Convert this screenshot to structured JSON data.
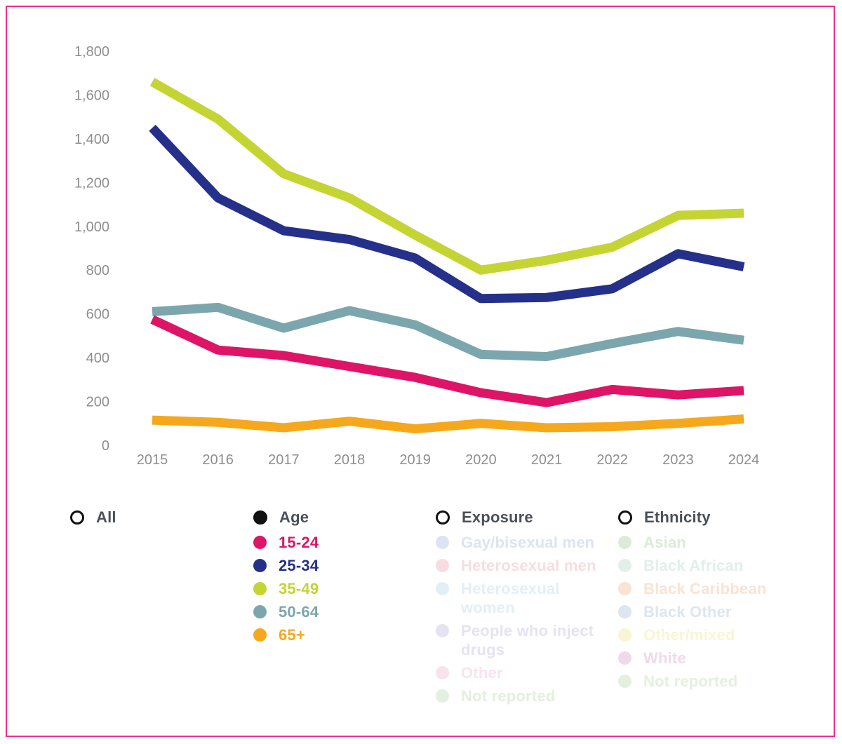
{
  "page": {
    "border_color": "#ef2d96",
    "axis_label_color": "#8e8e8e",
    "background": "#ffffff"
  },
  "chart_data": {
    "type": "line",
    "title": "",
    "xlabel": "",
    "ylabel": "",
    "x": [
      2015,
      2016,
      2017,
      2018,
      2019,
      2020,
      2021,
      2022,
      2023,
      2024
    ],
    "series": [
      {
        "name": "15-24",
        "color": "#de1567",
        "values": [
          575,
          435,
          410,
          360,
          310,
          240,
          195,
          255,
          230,
          250
        ]
      },
      {
        "name": "25-34",
        "color": "#25308a",
        "values": [
          1450,
          1130,
          980,
          940,
          855,
          670,
          675,
          715,
          875,
          815
        ]
      },
      {
        "name": "35-49",
        "color": "#c4d433",
        "values": [
          1660,
          1490,
          1240,
          1130,
          960,
          800,
          845,
          905,
          1050,
          1060
        ]
      },
      {
        "name": "50-64",
        "color": "#7ca6ad",
        "values": [
          610,
          630,
          535,
          615,
          550,
          415,
          405,
          465,
          520,
          480
        ]
      },
      {
        "name": "65+",
        "color": "#f6a81c",
        "values": [
          115,
          105,
          80,
          110,
          75,
          100,
          80,
          85,
          100,
          120
        ]
      }
    ],
    "ylim": [
      0,
      1800
    ],
    "ytick_step": 200,
    "ytick_labels": [
      "0",
      "200",
      "400",
      "600",
      "800",
      "1,000",
      "1,200",
      "1,400",
      "1,600",
      "1,800"
    ],
    "grid": false,
    "line_width": 13,
    "legend_position": "bottom"
  },
  "legend": {
    "groups": [
      {
        "id": "all",
        "label": "All",
        "checked": false,
        "items": []
      },
      {
        "id": "age",
        "label": "Age",
        "checked": true,
        "items": [
          {
            "label": "15-24",
            "color": "#de1567",
            "faded": false
          },
          {
            "label": "25-34",
            "color": "#25308a",
            "faded": false
          },
          {
            "label": "35-49",
            "color": "#c4d433",
            "faded": false
          },
          {
            "label": "50-64",
            "color": "#7ca6ad",
            "faded": false
          },
          {
            "label": "65+",
            "color": "#f6a81c",
            "faded": false
          }
        ]
      },
      {
        "id": "exposure",
        "label": "Exposure",
        "checked": false,
        "items": [
          {
            "label": "Gay/bisexual men",
            "color": "#dce3f2",
            "faded": true
          },
          {
            "label": "Heterosexual men",
            "color": "#f7dde2",
            "faded": true
          },
          {
            "label": "Heterosexual\nwomen",
            "color": "#e2f0f5",
            "faded": true
          },
          {
            "label": "People who inject\ndrugs",
            "color": "#e5e3f3",
            "faded": true
          },
          {
            "label": "Other",
            "color": "#f8e3ed",
            "faded": true
          },
          {
            "label": "Not reported",
            "color": "#e3efdf",
            "faded": true
          }
        ]
      },
      {
        "id": "ethnicity",
        "label": "Ethnicity",
        "checked": false,
        "items": [
          {
            "label": "Asian",
            "color": "#dcead9",
            "faded": true
          },
          {
            "label": "Black African",
            "color": "#e2efe9",
            "faded": true
          },
          {
            "label": "Black Caribbean",
            "color": "#fae3d2",
            "faded": true
          },
          {
            "label": "Black Other",
            "color": "#dce6f2",
            "faded": true
          },
          {
            "label": "Other/mixed",
            "color": "#f9f5d3",
            "faded": true
          },
          {
            "label": "White",
            "color": "#f0d9e9",
            "faded": true
          },
          {
            "label": "Not reported",
            "color": "#e4f0dd",
            "faded": true
          }
        ]
      }
    ]
  }
}
